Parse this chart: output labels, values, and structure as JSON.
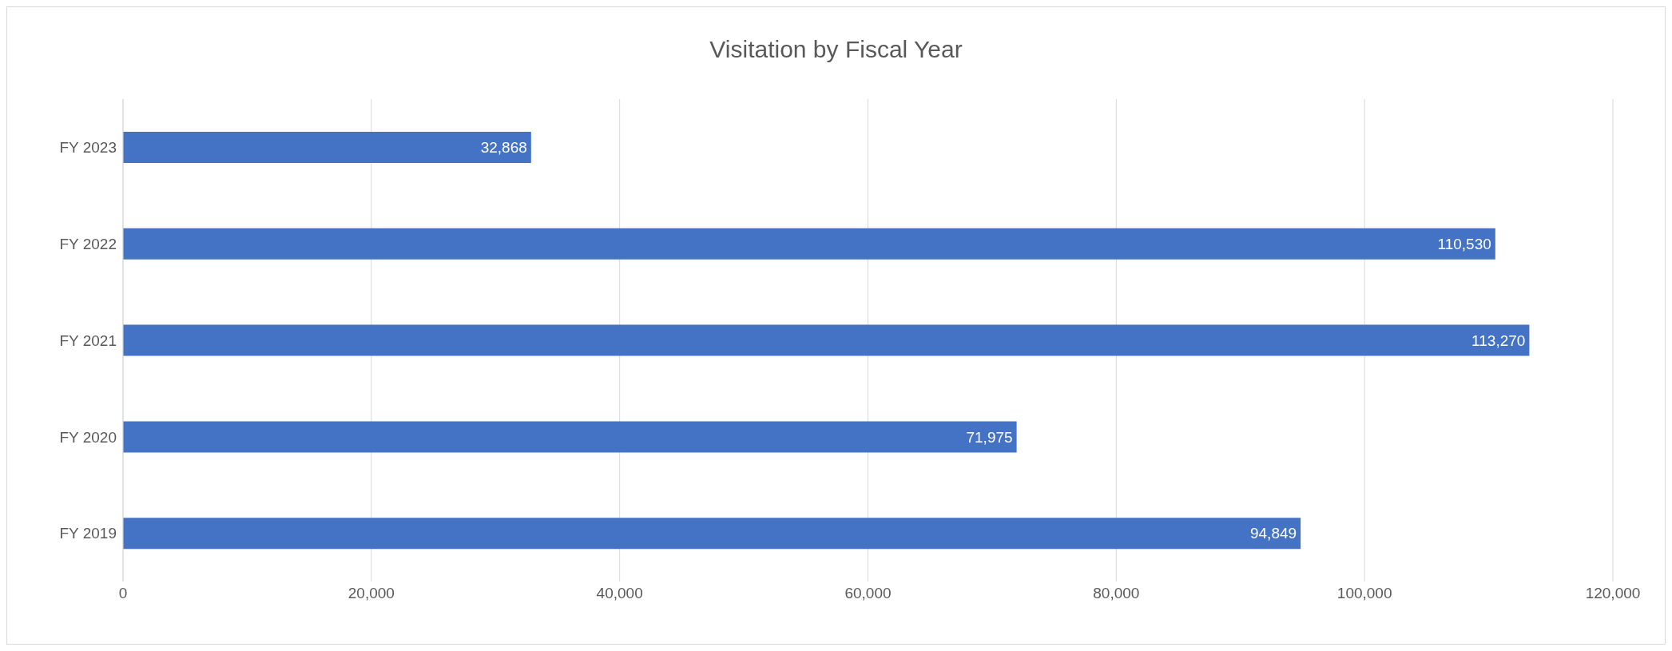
{
  "chart_data": {
    "type": "bar",
    "orientation": "horizontal",
    "title": "Visitation by Fiscal Year",
    "categories": [
      "FY 2023",
      "FY 2022",
      "FY 2021",
      "FY 2020",
      "FY 2019"
    ],
    "values": [
      32868,
      110530,
      113270,
      71975,
      94849
    ],
    "color": "#4472c4",
    "xlim": [
      0,
      120000
    ],
    "xticks": [
      0,
      {
        "value": 20000,
        "label": "20,000"
      },
      {
        "value": 40000,
        "label": "40,000"
      },
      {
        "value": 60000,
        "label": "60,000"
      },
      {
        "value": 80000,
        "label": "80,000"
      },
      {
        "value": 100000,
        "label": "100,000"
      },
      {
        "value": 120000,
        "label": "120,000"
      }
    ],
    "value_labels": [
      "32,868",
      "110,530",
      "113,270",
      "71,975",
      "94,849"
    ],
    "grid": "x"
  }
}
